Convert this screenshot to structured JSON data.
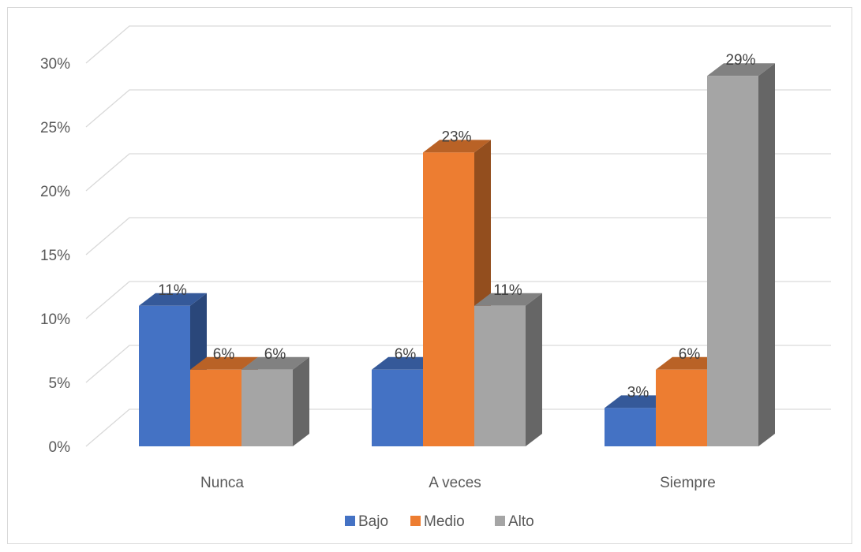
{
  "chart_data": {
    "type": "bar",
    "categories": [
      "Nunca",
      "A veces",
      "Siempre"
    ],
    "series": [
      {
        "name": "Bajo",
        "values": [
          11,
          6,
          3
        ],
        "labels": [
          "11%",
          "6%",
          "3%"
        ],
        "color": "#4472c4"
      },
      {
        "name": "Medio",
        "values": [
          6,
          23,
          6
        ],
        "labels": [
          "6%",
          "23%",
          "6%"
        ],
        "color": "#ed7d31"
      },
      {
        "name": "Alto",
        "values": [
          6,
          11,
          29
        ],
        "labels": [
          "6%",
          "11%",
          "29%"
        ],
        "color": "#a5a5a5"
      }
    ],
    "ylim": [
      0,
      30
    ],
    "yticks": [
      "0%",
      "5%",
      "10%",
      "15%",
      "20%",
      "25%",
      "30%"
    ],
    "grid": true,
    "legend": "bottom",
    "style": "3d-clustered-column"
  }
}
